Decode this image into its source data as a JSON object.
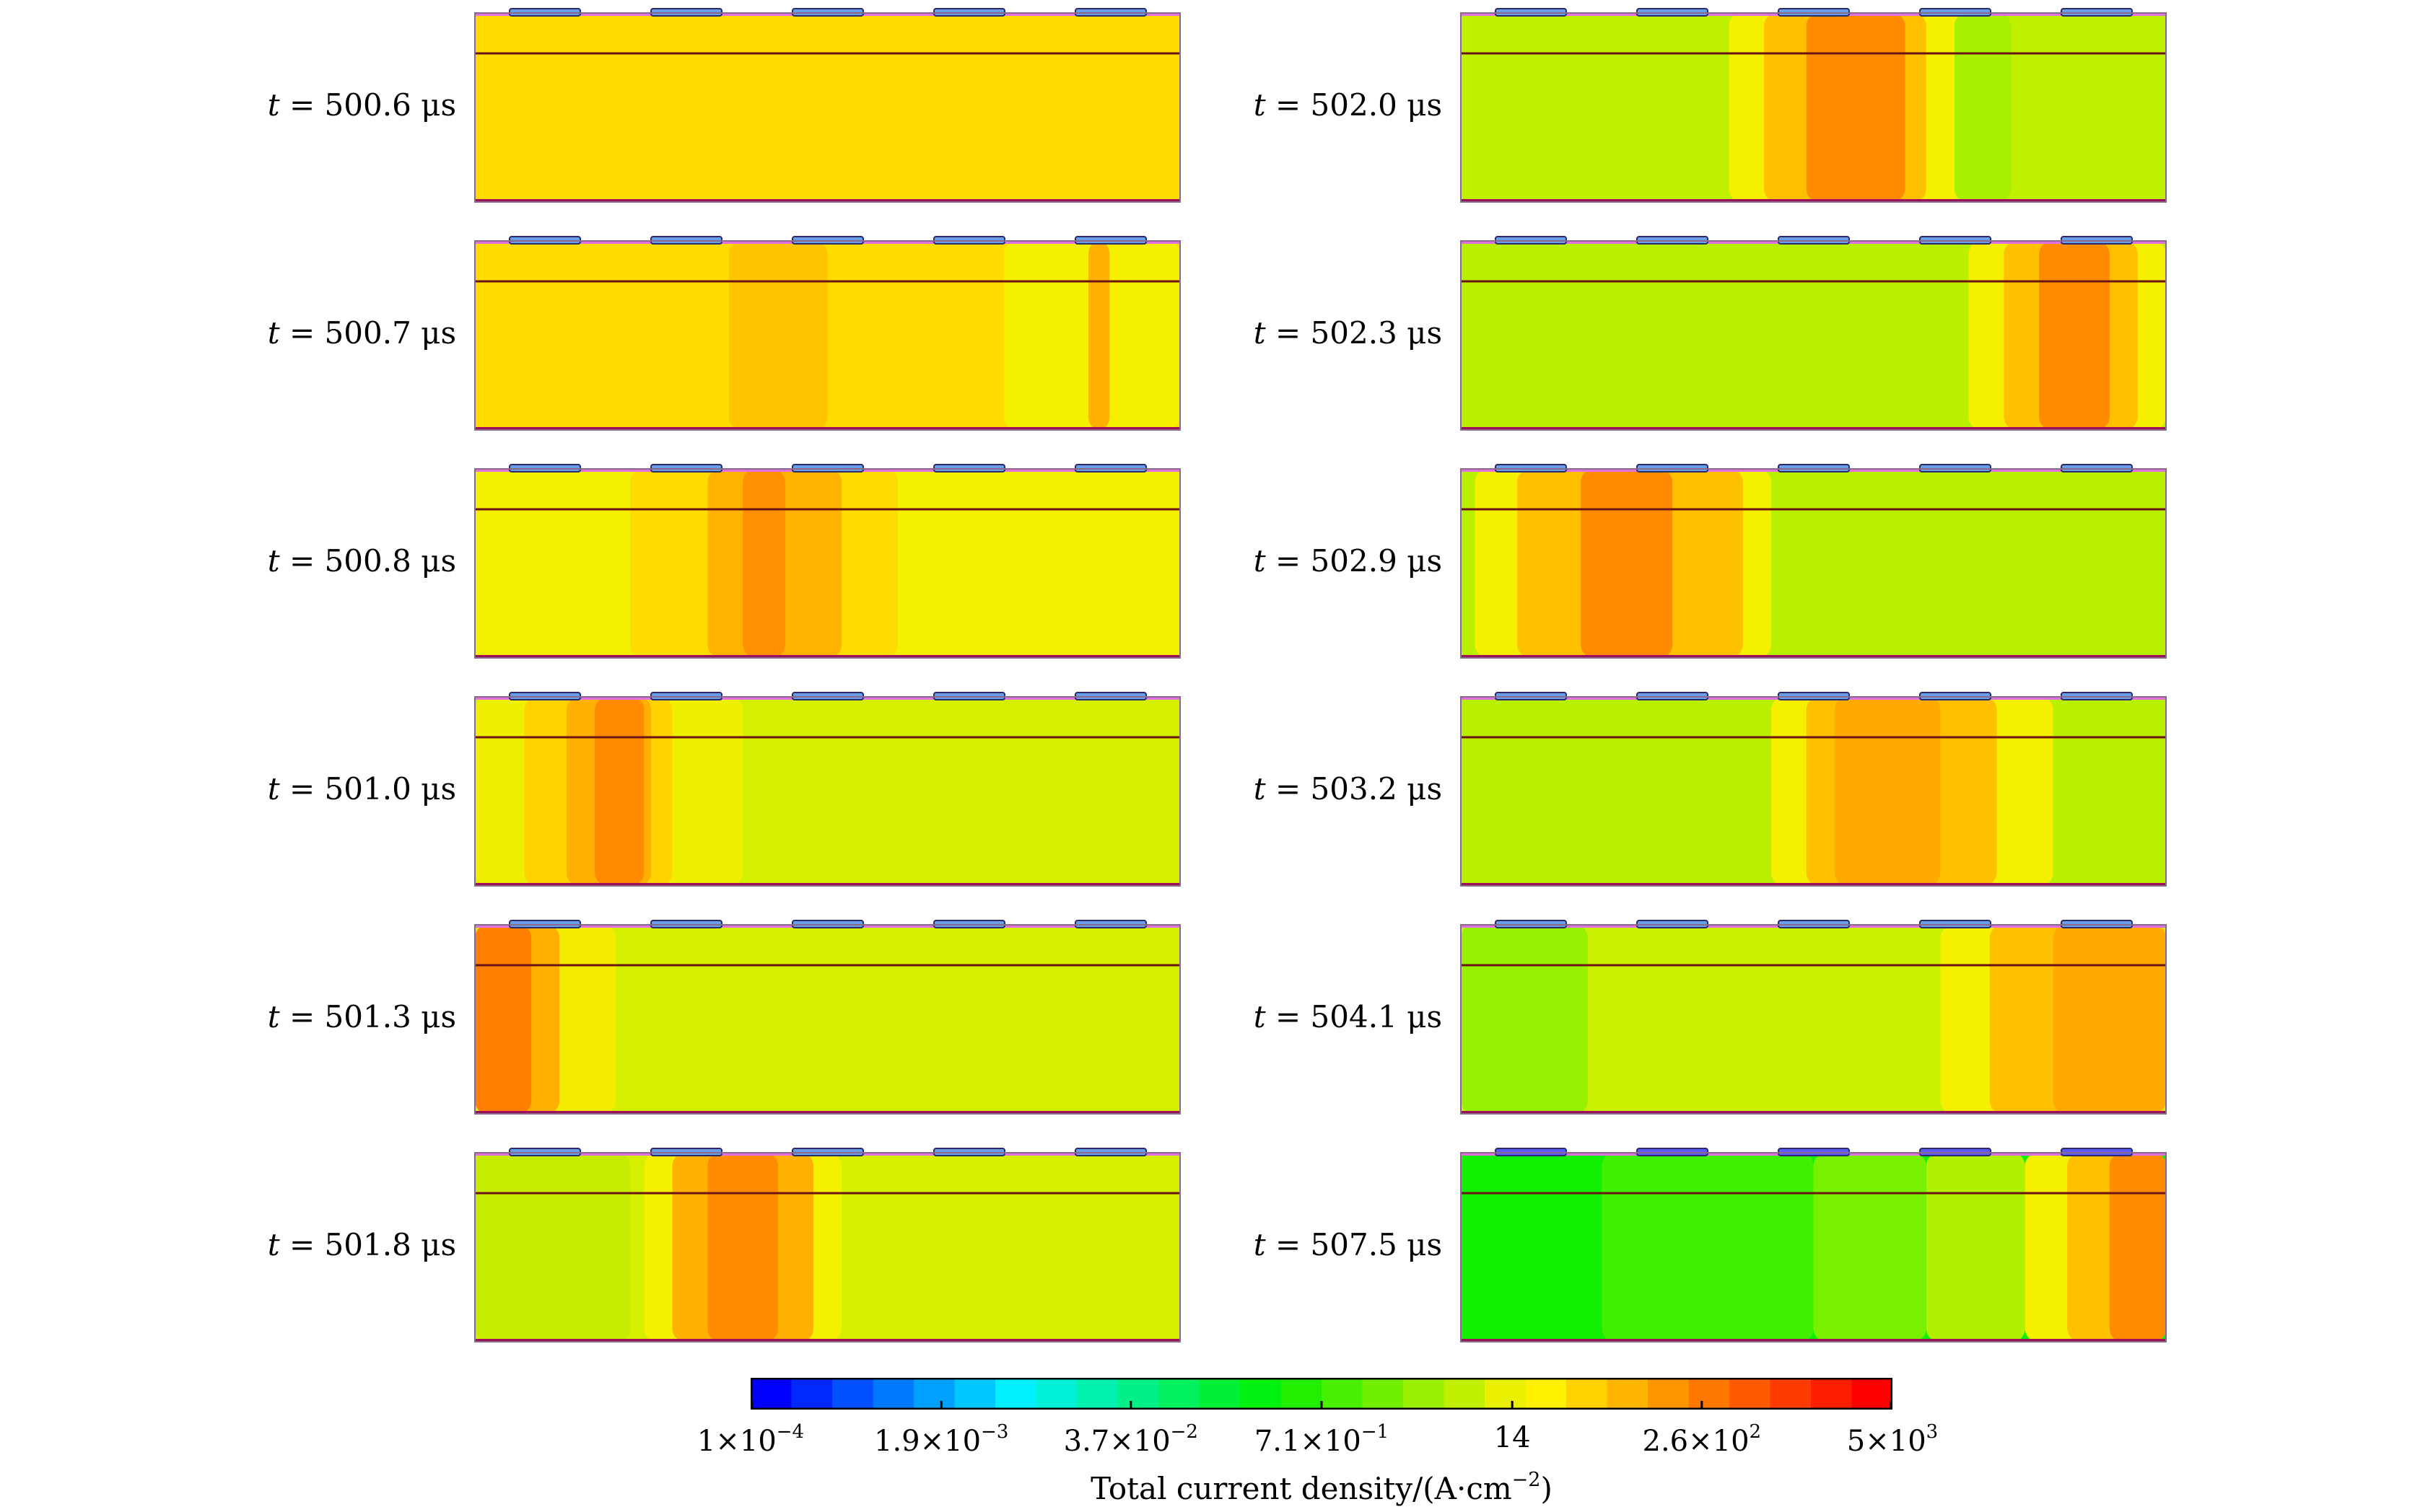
{
  "panels": [
    {
      "time": "500.6",
      "bg": "#ffdc00",
      "bands": []
    },
    {
      "time": "500.7",
      "bg": "#ffdc00",
      "bands": [
        {
          "x0": 0.36,
          "x1": 0.5,
          "c": "#ffc400"
        },
        {
          "x0": 0.75,
          "x1": 1.0,
          "c": "#f4f000"
        },
        {
          "x0": 0.87,
          "x1": 0.9,
          "c": "#ffb000"
        }
      ]
    },
    {
      "time": "500.8",
      "bg": "#f4f000",
      "bands": [
        {
          "x0": 0.22,
          "x1": 0.6,
          "c": "#ffdc00"
        },
        {
          "x0": 0.33,
          "x1": 0.52,
          "c": "#ffb300"
        },
        {
          "x0": 0.38,
          "x1": 0.44,
          "c": "#ff9000"
        }
      ]
    },
    {
      "time": "501.0",
      "bg": "#d4f000",
      "bands": [
        {
          "x0": 0.0,
          "x1": 0.38,
          "c": "#eef000"
        },
        {
          "x0": 0.07,
          "x1": 0.28,
          "c": "#ffd200"
        },
        {
          "x0": 0.13,
          "x1": 0.25,
          "c": "#ffb000"
        },
        {
          "x0": 0.17,
          "x1": 0.24,
          "c": "#ff8c00"
        }
      ]
    },
    {
      "time": "501.3",
      "bg": "#d4f000",
      "bands": [
        {
          "x0": 0.0,
          "x1": 0.2,
          "c": "#f4ec00"
        },
        {
          "x0": 0.0,
          "x1": 0.12,
          "c": "#ffb000"
        },
        {
          "x0": 0.0,
          "x1": 0.08,
          "c": "#ff8000"
        }
      ]
    },
    {
      "time": "501.8",
      "bg": "#d4f000",
      "bands": [
        {
          "x0": 0.0,
          "x1": 0.22,
          "c": "#c4ec00"
        },
        {
          "x0": 0.24,
          "x1": 0.52,
          "c": "#f4f000"
        },
        {
          "x0": 0.28,
          "x1": 0.48,
          "c": "#ffb000"
        },
        {
          "x0": 0.33,
          "x1": 0.43,
          "c": "#ff8c00"
        }
      ]
    },
    {
      "time": "502.0",
      "bg": "#bef000",
      "bands": [
        {
          "x0": 0.38,
          "x1": 0.72,
          "c": "#f4f000"
        },
        {
          "x0": 0.43,
          "x1": 0.66,
          "c": "#ffc000"
        },
        {
          "x0": 0.49,
          "x1": 0.63,
          "c": "#ff8c00"
        },
        {
          "x0": 0.7,
          "x1": 0.78,
          "c": "#a8ee00"
        }
      ]
    },
    {
      "time": "502.3",
      "bg": "#b8f000",
      "bands": [
        {
          "x0": 0.72,
          "x1": 1.0,
          "c": "#f4f000"
        },
        {
          "x0": 0.77,
          "x1": 0.96,
          "c": "#ffc000"
        },
        {
          "x0": 0.82,
          "x1": 0.92,
          "c": "#ff8c00"
        }
      ]
    },
    {
      "time": "502.9",
      "bg": "#b8f000",
      "bands": [
        {
          "x0": 0.02,
          "x1": 0.44,
          "c": "#f4f000"
        },
        {
          "x0": 0.08,
          "x1": 0.4,
          "c": "#ffc000"
        },
        {
          "x0": 0.17,
          "x1": 0.3,
          "c": "#ff8c00"
        }
      ]
    },
    {
      "time": "503.2",
      "bg": "#b8f000",
      "bands": [
        {
          "x0": 0.44,
          "x1": 0.84,
          "c": "#f4f000"
        },
        {
          "x0": 0.49,
          "x1": 0.76,
          "c": "#ffc000"
        },
        {
          "x0": 0.53,
          "x1": 0.68,
          "c": "#ffaa00"
        }
      ]
    },
    {
      "time": "504.1",
      "bg": "#c8f000",
      "bands": [
        {
          "x0": 0.0,
          "x1": 0.18,
          "c": "#96f000"
        },
        {
          "x0": 0.68,
          "x1": 1.0,
          "c": "#f4f000"
        },
        {
          "x0": 0.75,
          "x1": 1.0,
          "c": "#ffc000"
        },
        {
          "x0": 0.84,
          "x1": 1.0,
          "c": "#ffaa00"
        }
      ]
    },
    {
      "time": "507.5",
      "bg": "#10f000",
      "bands": [
        {
          "x0": 0.2,
          "x1": 0.5,
          "c": "#40f000"
        },
        {
          "x0": 0.5,
          "x1": 0.66,
          "c": "#78f000"
        },
        {
          "x0": 0.66,
          "x1": 0.8,
          "c": "#b0f000"
        },
        {
          "x0": 0.8,
          "x1": 1.0,
          "c": "#f4f000"
        },
        {
          "x0": 0.86,
          "x1": 1.0,
          "c": "#ffc000"
        },
        {
          "x0": 0.92,
          "x1": 1.0,
          "c": "#ff8c00"
        }
      ]
    }
  ],
  "colorbar": {
    "title_base": "Total current density/(A·cm",
    "title_exp": "−2",
    "title_close": ")",
    "ticks": [
      {
        "pos": 0.0,
        "mant": "1×10",
        "exp": "−4"
      },
      {
        "pos": 0.167,
        "mant": "1.9×10",
        "exp": "−3"
      },
      {
        "pos": 0.333,
        "mant": "3.7×10",
        "exp": "−2"
      },
      {
        "pos": 0.5,
        "mant": "7.1×10",
        "exp": "−1"
      },
      {
        "pos": 0.667,
        "mant": "14",
        "exp": ""
      },
      {
        "pos": 0.833,
        "mant": "2.6×10",
        "exp": "2"
      },
      {
        "pos": 1.0,
        "mant": "5×10",
        "exp": "3"
      }
    ],
    "colors": [
      "#0000ff",
      "#0028ff",
      "#0050ff",
      "#0078ff",
      "#00a0ff",
      "#00c8ff",
      "#00f0ff",
      "#00f0d8",
      "#00f0b0",
      "#00f088",
      "#00f060",
      "#00f038",
      "#00f010",
      "#20f000",
      "#48f000",
      "#70f000",
      "#98f000",
      "#c0f000",
      "#e8f000",
      "#fff000",
      "#ffd200",
      "#ffb400",
      "#ff9600",
      "#ff7800",
      "#ff5a00",
      "#ff3c00",
      "#ff1e00",
      "#ff0000"
    ]
  }
}
